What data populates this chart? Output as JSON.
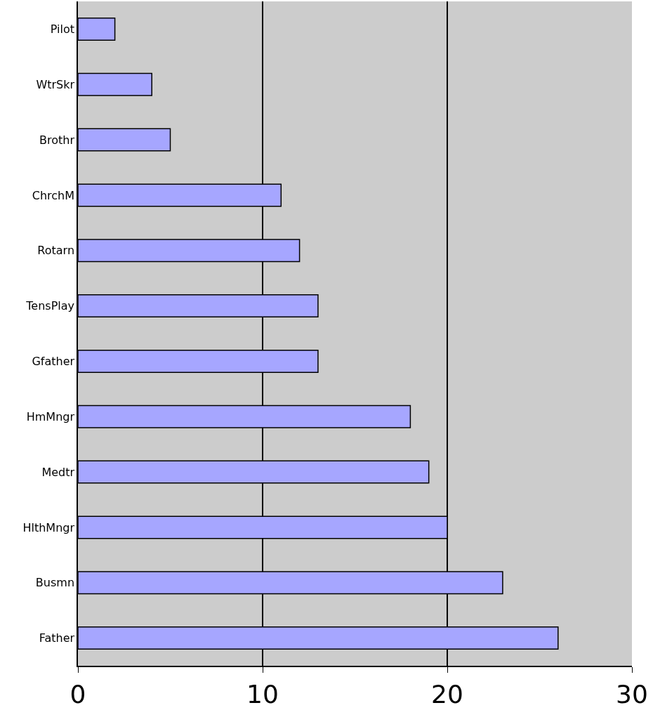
{
  "chart_data": {
    "type": "bar",
    "orientation": "horizontal",
    "categories": [
      "Pilot",
      "WtrSkr",
      "Brothr",
      "ChrchM",
      "Rotarn",
      "TensPlay",
      "Gfather",
      "HmMngr",
      "Medtr",
      "HlthMngr",
      "Busmn",
      "Father"
    ],
    "values": [
      2,
      4,
      5,
      11,
      12,
      13,
      13,
      18,
      19,
      20,
      23,
      26
    ],
    "color": "#a6a6ff",
    "xlim": [
      0,
      30
    ],
    "xticks": [
      0,
      10,
      20,
      30
    ],
    "grid": "x",
    "legend": false
  }
}
